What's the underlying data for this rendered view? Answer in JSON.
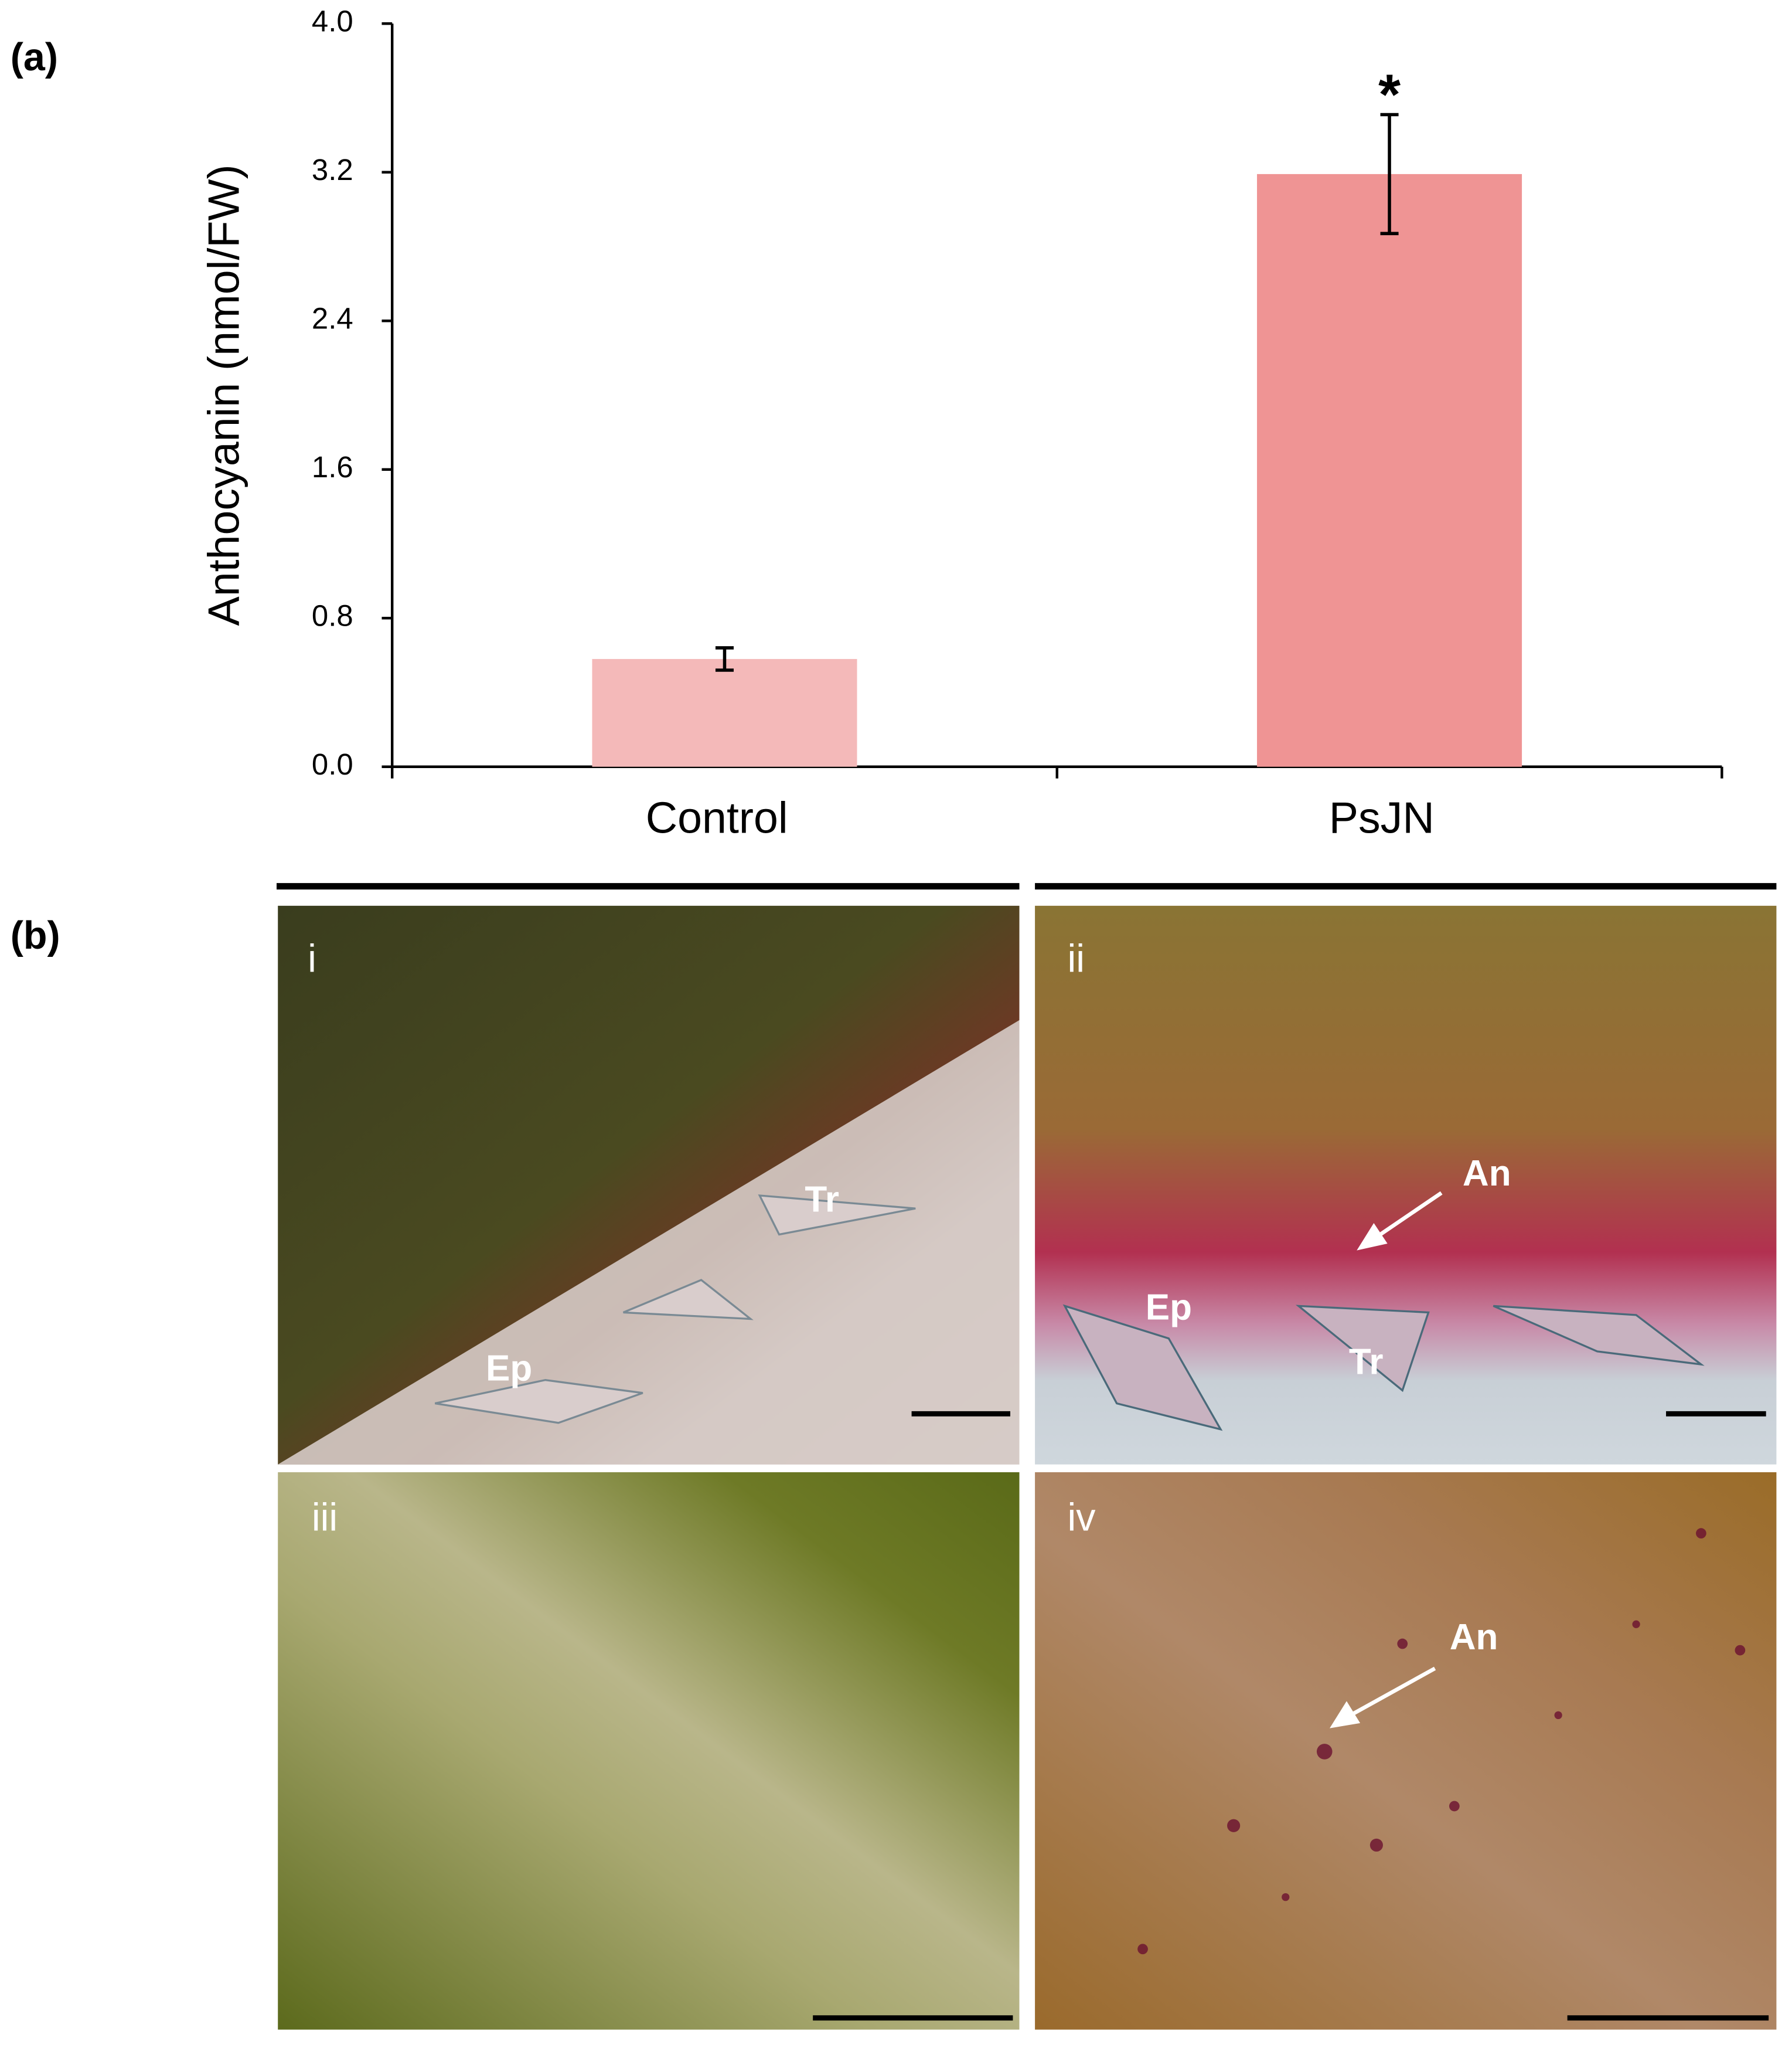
{
  "chart_data": {
    "type": "bar",
    "ylabel": "Anthocyanin (nmol/FW)",
    "categories": [
      "Control",
      "PsJN"
    ],
    "values": [
      0.58,
      3.19
    ],
    "errors": [
      0.06,
      0.32
    ],
    "colors": [
      "#f4b9b9",
      "#ef9494"
    ],
    "annotation": "*",
    "ylim": [
      0,
      4
    ],
    "yticks": [
      {
        "value": 0,
        "label": "0.0"
      },
      {
        "value": 0.8,
        "label": "0.8"
      },
      {
        "value": 1.6,
        "label": "1.6"
      },
      {
        "value": 2.4,
        "label": "2.4"
      },
      {
        "value": 3.2,
        "label": "3.2"
      },
      {
        "value": 4,
        "label": "4.0"
      }
    ]
  },
  "panel_labels": [
    "(a)",
    "(b)"
  ],
  "micrographs": [
    {
      "label": "i",
      "annotations": [
        "Tr",
        "Ep"
      ]
    },
    {
      "label": "ii",
      "annotations": [
        "An",
        "Ep",
        "Tr"
      ]
    },
    {
      "label": "iii",
      "annotations": []
    },
    {
      "label": "iv",
      "annotations": [
        "An"
      ]
    }
  ]
}
